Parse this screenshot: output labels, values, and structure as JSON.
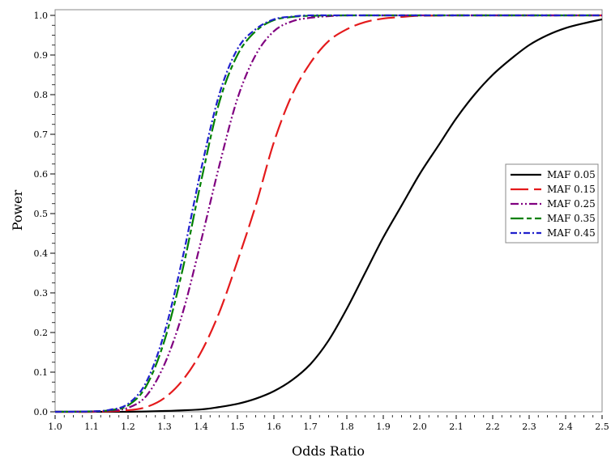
{
  "chart_data": {
    "type": "line",
    "title": "",
    "xlabel": "Odds Ratio",
    "ylabel": "Power",
    "xlim": [
      1.0,
      2.5
    ],
    "ylim": [
      0.0,
      1.0
    ],
    "xticks": [
      "1.0",
      "1.1",
      "1.2",
      "1.3",
      "1.4",
      "1.5",
      "1.6",
      "1.7",
      "1.8",
      "1.9",
      "2.0",
      "2.1",
      "2.2",
      "2.3",
      "2.4",
      "2.5"
    ],
    "yticks": [
      "0.0",
      "0.1",
      "0.2",
      "0.3",
      "0.4",
      "0.5",
      "0.6",
      "0.7",
      "0.8",
      "0.9",
      "1.0"
    ],
    "grid": false,
    "legend_position": "right",
    "series": [
      {
        "name": "MAF 0.05",
        "color": "#000000",
        "dash": "solid",
        "x": [
          1.0,
          1.1,
          1.2,
          1.3,
          1.4,
          1.45,
          1.5,
          1.55,
          1.6,
          1.65,
          1.7,
          1.75,
          1.8,
          1.85,
          1.9,
          1.95,
          2.0,
          2.05,
          2.1,
          2.15,
          2.2,
          2.25,
          2.3,
          2.35,
          2.4,
          2.45,
          2.5
        ],
        "y": [
          0.0,
          0.0,
          0.0,
          0.002,
          0.006,
          0.012,
          0.02,
          0.033,
          0.052,
          0.08,
          0.12,
          0.18,
          0.26,
          0.35,
          0.44,
          0.52,
          0.6,
          0.67,
          0.74,
          0.8,
          0.85,
          0.89,
          0.925,
          0.95,
          0.968,
          0.98,
          0.99
        ]
      },
      {
        "name": "MAF 0.15",
        "color": "#e41a1c",
        "dash": "long-dash",
        "x": [
          1.0,
          1.1,
          1.2,
          1.25,
          1.3,
          1.35,
          1.4,
          1.45,
          1.5,
          1.55,
          1.6,
          1.65,
          1.7,
          1.75,
          1.8,
          1.85,
          1.9,
          1.95,
          2.0,
          2.1,
          2.2,
          2.5
        ],
        "y": [
          0.0,
          0.0,
          0.004,
          0.012,
          0.035,
          0.08,
          0.15,
          0.25,
          0.38,
          0.52,
          0.68,
          0.8,
          0.88,
          0.935,
          0.965,
          0.983,
          0.992,
          0.996,
          0.999,
          1.0,
          1.0,
          1.0
        ]
      },
      {
        "name": "MAF 0.25",
        "color": "#800080",
        "dash": "dash-dot-dot",
        "x": [
          1.0,
          1.1,
          1.15,
          1.2,
          1.25,
          1.3,
          1.35,
          1.4,
          1.45,
          1.5,
          1.55,
          1.6,
          1.65,
          1.7,
          1.75,
          1.8,
          1.9,
          2.0,
          2.5
        ],
        "y": [
          0.0,
          0.001,
          0.003,
          0.01,
          0.04,
          0.12,
          0.25,
          0.43,
          0.62,
          0.79,
          0.9,
          0.96,
          0.985,
          0.994,
          0.998,
          1.0,
          1.0,
          1.0,
          1.0
        ]
      },
      {
        "name": "MAF 0.35",
        "color": "#008000",
        "dash": "long-short",
        "x": [
          1.0,
          1.1,
          1.15,
          1.2,
          1.25,
          1.3,
          1.35,
          1.4,
          1.45,
          1.5,
          1.55,
          1.6,
          1.65,
          1.7,
          1.8,
          2.0,
          2.5
        ],
        "y": [
          0.0,
          0.001,
          0.004,
          0.016,
          0.065,
          0.18,
          0.36,
          0.58,
          0.78,
          0.9,
          0.96,
          0.988,
          0.996,
          0.999,
          1.0,
          1.0,
          1.0
        ]
      },
      {
        "name": "MAF 0.45",
        "color": "#1f1fcc",
        "dash": "dash-dot",
        "x": [
          1.0,
          1.1,
          1.15,
          1.2,
          1.25,
          1.3,
          1.35,
          1.4,
          1.45,
          1.5,
          1.55,
          1.6,
          1.65,
          1.7,
          1.8,
          2.0,
          2.5
        ],
        "y": [
          0.0,
          0.001,
          0.005,
          0.02,
          0.075,
          0.2,
          0.39,
          0.61,
          0.8,
          0.915,
          0.965,
          0.99,
          0.997,
          1.0,
          1.0,
          1.0,
          1.0
        ]
      }
    ]
  }
}
